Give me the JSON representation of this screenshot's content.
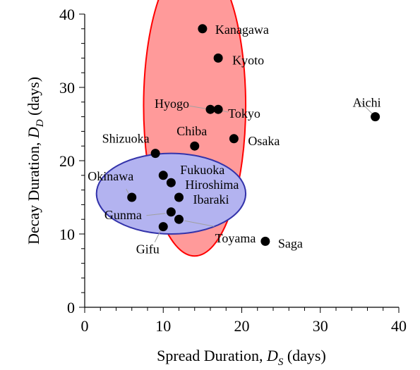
{
  "chart_data": {
    "type": "scatter",
    "xlabel": {
      "main": "Spread Duration, ",
      "var": "D",
      "sub": "S",
      "unit": " (days)"
    },
    "ylabel": {
      "main": "Decay Duration, ",
      "var": "D",
      "sub": "D",
      "unit": " (days)"
    },
    "xlim": [
      0,
      40
    ],
    "ylim": [
      0,
      40
    ],
    "xticks": [
      0,
      10,
      20,
      30,
      40
    ],
    "yticks": [
      0,
      10,
      20,
      30,
      40
    ],
    "grid": false,
    "points": [
      {
        "label": "Kanagawa",
        "x": 15,
        "y": 38
      },
      {
        "label": "Kyoto",
        "x": 17,
        "y": 34
      },
      {
        "label": "Aichi",
        "x": 37,
        "y": 26
      },
      {
        "label": "Hyogo",
        "x": 16,
        "y": 27
      },
      {
        "label": "Tokyo",
        "x": 17,
        "y": 27
      },
      {
        "label": "Chiba",
        "x": 14,
        "y": 22
      },
      {
        "label": "Osaka",
        "x": 19,
        "y": 23
      },
      {
        "label": "Shizuoka",
        "x": 9,
        "y": 21
      },
      {
        "label": "Fukuoka",
        "x": 10,
        "y": 18
      },
      {
        "label": "Hiroshima",
        "x": 11,
        "y": 17
      },
      {
        "label": "Okinawa",
        "x": 6,
        "y": 15
      },
      {
        "label": "Ibaraki",
        "x": 12,
        "y": 15
      },
      {
        "label": "Gunma",
        "x": 11,
        "y": 13
      },
      {
        "label": "Toyama",
        "x": 12,
        "y": 12
      },
      {
        "label": "Gifu",
        "x": 10,
        "y": 11
      },
      {
        "label": "Saga",
        "x": 23,
        "y": 9
      }
    ],
    "groups": [
      {
        "color": "#ff0000",
        "fill": "#ff9a9a",
        "cx": 14,
        "cy": 27.5,
        "rx": 6.5,
        "ry": 20.5
      },
      {
        "color": "#3333aa",
        "fill": "#b3b3f0",
        "cx": 11,
        "cy": 15.5,
        "rx": 9.5,
        "ry": 5.5
      }
    ]
  }
}
